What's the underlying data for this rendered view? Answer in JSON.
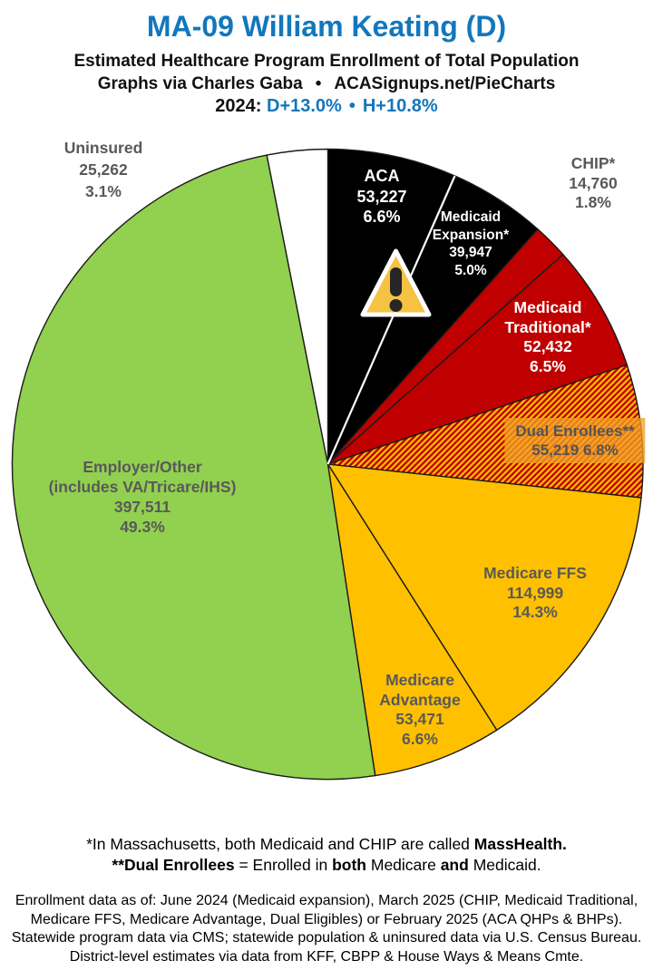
{
  "header": {
    "title": "MA-09 William Keating (D)",
    "subtitle": "Estimated Healthcare Program Enrollment of Total Population",
    "credit": {
      "author": "Graphs via Charles Gaba",
      "separator": "•",
      "site": "ACASignups.net/PieCharts"
    },
    "stats": {
      "year_label": "2024:",
      "dem_margin": "D+13.0%",
      "separator": "•",
      "house_margin": "H+10.8%"
    },
    "accent_color": "#1277BD"
  },
  "chart_data": {
    "type": "pie",
    "title": "MA-09 William Keating (D)",
    "subtitle": "Estimated Healthcare Program Enrollment of Total Population",
    "start_angle_deg": 0,
    "direction": "clockwise",
    "legend_position": "labels-on-slices",
    "slices": [
      {
        "label": "ACA",
        "value": 53227,
        "value_str": "53,227",
        "pct": 6.6,
        "pct_str": "6.6%",
        "color": "#000000",
        "divider_after": "#ffffff",
        "text_color": "#ffffff"
      },
      {
        "label": "Medicaid Expansion*",
        "label_lines": [
          "Medicaid",
          "Expansion*"
        ],
        "value": 39947,
        "value_str": "39,947",
        "pct": 5.0,
        "pct_str": "5.0%",
        "color": "#000000",
        "text_color": "#ffffff"
      },
      {
        "label": "CHIP*",
        "value": 14760,
        "value_str": "14,760",
        "pct": 1.8,
        "pct_str": "1.8%",
        "color": "#C00000",
        "text_color": "#595959"
      },
      {
        "label": "Medicaid Traditional*",
        "label_lines": [
          "Medicaid",
          "Traditional*"
        ],
        "value": 52432,
        "value_str": "52,432",
        "pct": 6.5,
        "pct_str": "6.5%",
        "color": "#C00000",
        "text_color": "#ffffff"
      },
      {
        "label": "Dual Enrollees**",
        "value": 55219,
        "value_str": "55,219",
        "pct": 6.8,
        "pct_str": "6.8%",
        "pattern": "red-yellow-diagonal-hatch",
        "pattern_colors": [
          "#C00000",
          "#FFC000"
        ],
        "text_color": "#595959"
      },
      {
        "label": "Medicare FFS",
        "value": 114999,
        "value_str": "114,999",
        "pct": 14.3,
        "pct_str": "14.3%",
        "color": "#FFC000",
        "text_color": "#595959"
      },
      {
        "label": "Medicare Advantage",
        "label_lines": [
          "Medicare",
          "Advantage"
        ],
        "value": 53471,
        "value_str": "53,471",
        "pct": 6.6,
        "pct_str": "6.6%",
        "color": "#FFC000",
        "text_color": "#595959"
      },
      {
        "label": "Employer/Other (includes VA/Tricare/IHS)",
        "label_lines": [
          "Employer/Other",
          "(includes VA/Tricare/IHS)"
        ],
        "value": 397511,
        "value_str": "397,511",
        "pct": 49.3,
        "pct_str": "49.3%",
        "color": "#92D050",
        "text_color": "#595959"
      },
      {
        "label": "Uninsured",
        "value": 25262,
        "value_str": "25,262",
        "pct": 3.1,
        "pct_str": "3.1%",
        "color": "#FFFFFF",
        "text_color": "#595959"
      }
    ]
  },
  "icons": {
    "warning_icon": "warning-triangle-exclamation"
  },
  "footer": {
    "note1": {
      "segments": [
        {
          "text": "*In Massachusetts, both Medicaid and CHIP are called ",
          "bold": false
        },
        {
          "text": "MassHealth.",
          "bold": true
        }
      ]
    },
    "note2": {
      "segments": [
        {
          "text": "**Dual Enrollees",
          "bold": true
        },
        {
          "text": " = Enrolled in ",
          "bold": false
        },
        {
          "text": "both",
          "bold": true
        },
        {
          "text": " Medicare ",
          "bold": false
        },
        {
          "text": "and",
          "bold": true
        },
        {
          "text": " Medicaid.",
          "bold": false
        }
      ]
    },
    "data_notes": [
      "Enrollment data as of: June 2024 (Medicaid expansion), March 2025 (CHIP, Medicaid Traditional,",
      "Medicare FFS, Medicare Advantage, Dual Eligibles) or February 2025 (ACA QHPs & BHPs).",
      "Statewide program data via CMS; statewide population & uninsured data via U.S. Census Bureau.",
      "District-level estimates via data from KFF, CBPP & House Ways & Means Cmte."
    ]
  }
}
